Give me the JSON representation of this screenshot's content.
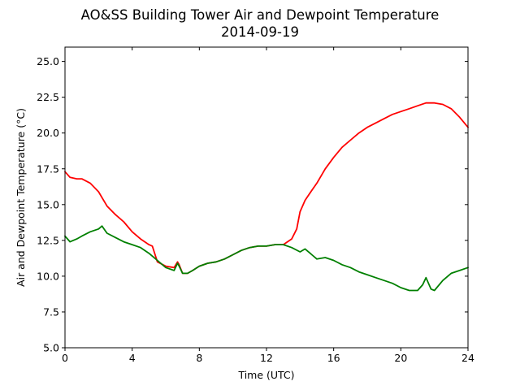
{
  "chart_data": {
    "type": "line",
    "title": "AO&SS Building Tower Air and Dewpoint Temperature",
    "subtitle": "2014-09-19",
    "xlabel": "Time (UTC)",
    "ylabel": "Air and Dewpoint Temperature (°C)",
    "xlim": [
      0,
      24
    ],
    "ylim": [
      5,
      26
    ],
    "x_ticks": [
      0,
      4,
      8,
      12,
      16,
      20,
      24
    ],
    "x_tick_labels": [
      "0",
      "4",
      "8",
      "12",
      "16",
      "20",
      "24"
    ],
    "y_ticks": [
      5,
      7.5,
      10,
      12.5,
      15,
      17.5,
      20,
      22.5,
      25
    ],
    "y_tick_labels": [
      "5.0",
      "7.5",
      "10.0",
      "12.5",
      "15.0",
      "17.5",
      "20.0",
      "22.5",
      "25.0"
    ],
    "grid": false,
    "series": [
      {
        "color": "#ff0000",
        "x": [
          0,
          0.3,
          0.7,
          1,
          1.5,
          2,
          2.5,
          3,
          3.5,
          4,
          4.5,
          5,
          5.2,
          5.5,
          6,
          6.5,
          6.7,
          6.8,
          7,
          7.3,
          7.6,
          8,
          8.5,
          9,
          9.5,
          10,
          10.5,
          11,
          11.5,
          12,
          12.5,
          13,
          13.5,
          13.8,
          14,
          14.3,
          14.7,
          15,
          15.5,
          16,
          16.5,
          17,
          17.5,
          18,
          18.5,
          19,
          19.5,
          20,
          20.5,
          21,
          21.5,
          22,
          22.5,
          23,
          23.5,
          24
        ],
        "y": [
          17.3,
          16.9,
          16.8,
          16.8,
          16.5,
          15.9,
          14.9,
          14.3,
          13.8,
          13.1,
          12.6,
          12.2,
          12.1,
          11.0,
          10.7,
          10.6,
          11.0,
          10.8,
          10.2,
          10.2,
          10.4,
          10.7,
          10.9,
          11.0,
          11.2,
          11.5,
          11.8,
          12.0,
          12.1,
          12.1,
          12.2,
          12.2,
          12.6,
          13.3,
          14.5,
          15.3,
          16.0,
          16.5,
          17.5,
          18.3,
          19.0,
          19.5,
          20.0,
          20.4,
          20.7,
          21.0,
          21.3,
          21.5,
          21.7,
          21.9,
          22.1,
          22.1,
          22.0,
          21.7,
          21.1,
          20.4
        ]
      },
      {
        "color": "#008000",
        "x": [
          0,
          0.3,
          0.7,
          1,
          1.5,
          2,
          2.2,
          2.5,
          3,
          3.5,
          4,
          4.5,
          5,
          5.5,
          6,
          6.5,
          6.7,
          6.8,
          7,
          7.3,
          7.6,
          8,
          8.5,
          9,
          9.5,
          10,
          10.5,
          11,
          11.5,
          12,
          12.5,
          13,
          13.5,
          14,
          14.3,
          14.7,
          15,
          15.5,
          16,
          16.5,
          17,
          17.5,
          18,
          18.5,
          19,
          19.5,
          20,
          20.5,
          21,
          21.3,
          21.5,
          21.8,
          22,
          22.5,
          23,
          23.5,
          24
        ],
        "y": [
          12.8,
          12.4,
          12.6,
          12.8,
          13.1,
          13.3,
          13.5,
          13.0,
          12.7,
          12.4,
          12.2,
          12.0,
          11.6,
          11.1,
          10.6,
          10.4,
          10.9,
          10.7,
          10.2,
          10.2,
          10.4,
          10.7,
          10.9,
          11.0,
          11.2,
          11.5,
          11.8,
          12.0,
          12.1,
          12.1,
          12.2,
          12.2,
          12.0,
          11.7,
          11.9,
          11.5,
          11.2,
          11.3,
          11.1,
          10.8,
          10.6,
          10.3,
          10.1,
          9.9,
          9.7,
          9.5,
          9.2,
          9.0,
          9.0,
          9.4,
          9.9,
          9.1,
          9.0,
          9.7,
          10.2,
          10.4,
          10.6
        ]
      }
    ]
  }
}
